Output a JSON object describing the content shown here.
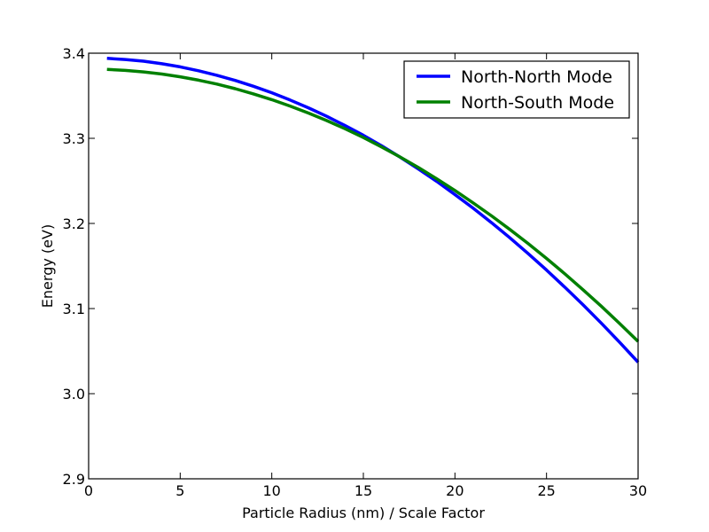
{
  "chart_data": {
    "type": "line",
    "title": "",
    "xlabel": "Particle Radius (nm) / Scale Factor",
    "ylabel": "Energy (eV)",
    "xlim": [
      0,
      30
    ],
    "ylim": [
      2.9,
      3.4
    ],
    "xticks": [
      0,
      5,
      10,
      15,
      20,
      25,
      30
    ],
    "xtick_labels": [
      "0",
      "5",
      "10",
      "15",
      "20",
      "25",
      "30"
    ],
    "yticks": [
      2.9,
      3.0,
      3.1,
      3.2,
      3.3,
      3.4
    ],
    "ytick_labels": [
      "2.9",
      "3.0",
      "3.1",
      "3.2",
      "3.3",
      "3.4"
    ],
    "grid": false,
    "legend_position": "top-right",
    "series": [
      {
        "name": "North-North Mode",
        "color": "#0000ff",
        "x": [
          1,
          2,
          3,
          4,
          5,
          6,
          7,
          8,
          9,
          10,
          11,
          12,
          13,
          14,
          15,
          16,
          17,
          18,
          19,
          20,
          21,
          22,
          23,
          24,
          25,
          26,
          27,
          28,
          29,
          30
        ],
        "y": [
          3.394,
          3.3926,
          3.3906,
          3.3876,
          3.384,
          3.3794,
          3.3741,
          3.368,
          3.3611,
          3.3535,
          3.345,
          3.3358,
          3.3258,
          3.315,
          3.3035,
          3.2911,
          3.278,
          3.2641,
          3.2495,
          3.234,
          3.2178,
          3.2008,
          3.1831,
          3.1645,
          3.1452,
          3.1251,
          3.1043,
          3.0826,
          3.0602,
          3.037
        ]
      },
      {
        "name": "North-South Mode",
        "color": "#008000",
        "x": [
          1,
          2,
          3,
          4,
          5,
          6,
          7,
          8,
          9,
          10,
          11,
          12,
          13,
          14,
          15,
          16,
          17,
          18,
          19,
          20,
          21,
          22,
          23,
          24,
          25,
          26,
          27,
          28,
          29,
          30
        ],
        "y": [
          3.381,
          3.3798,
          3.378,
          3.3755,
          3.3723,
          3.3683,
          3.3637,
          3.3583,
          3.3522,
          3.3454,
          3.3379,
          3.3297,
          3.3208,
          3.3112,
          3.3009,
          3.2898,
          3.2781,
          3.2657,
          3.2525,
          3.2387,
          3.2241,
          3.2089,
          3.1929,
          3.1762,
          3.1589,
          3.1408,
          3.122,
          3.1025,
          3.0823,
          3.0614
        ]
      }
    ]
  }
}
